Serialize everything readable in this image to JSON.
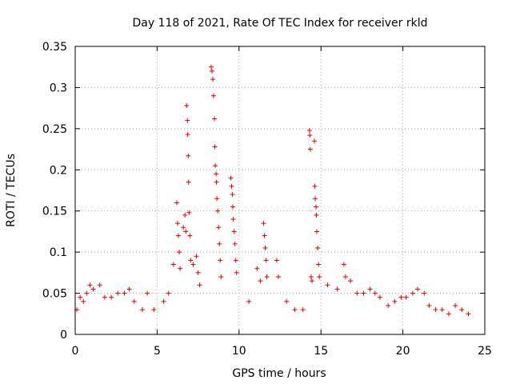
{
  "chart_data": {
    "type": "scatter",
    "title": "Day 118 of 2021, Rate Of TEC Index for receiver rkld",
    "xlabel": "GPS time / hours",
    "ylabel": "ROTI / TECUs",
    "xlim": [
      0,
      25
    ],
    "ylim": [
      0,
      0.35
    ],
    "grid": true,
    "marker": "+",
    "marker_color": "#e00000",
    "x_ticks": [
      {
        "value": 0,
        "label": "0"
      },
      {
        "value": 5,
        "label": "5"
      },
      {
        "value": 10,
        "label": "10"
      },
      {
        "value": 15,
        "label": "15"
      },
      {
        "value": 20,
        "label": "20"
      },
      {
        "value": 25,
        "label": "25"
      }
    ],
    "y_ticks": [
      {
        "value": 0,
        "label": "0"
      },
      {
        "value": 0.05,
        "label": "0.05"
      },
      {
        "value": 0.1,
        "label": "0.1"
      },
      {
        "value": 0.15,
        "label": "0.15"
      },
      {
        "value": 0.2,
        "label": "0.2"
      },
      {
        "value": 0.25,
        "label": "0.25"
      },
      {
        "value": 0.3,
        "label": "0.3"
      },
      {
        "value": 0.35,
        "label": "0.35"
      }
    ],
    "series": [
      {
        "name": "ROTI",
        "points": [
          [
            0.1,
            0.03
          ],
          [
            0.3,
            0.045
          ],
          [
            0.5,
            0.04
          ],
          [
            0.7,
            0.05
          ],
          [
            0.9,
            0.06
          ],
          [
            1.1,
            0.055
          ],
          [
            1.5,
            0.06
          ],
          [
            1.8,
            0.045
          ],
          [
            2.2,
            0.045
          ],
          [
            2.6,
            0.05
          ],
          [
            3.0,
            0.05
          ],
          [
            3.3,
            0.055
          ],
          [
            3.6,
            0.04
          ],
          [
            4.1,
            0.03
          ],
          [
            4.4,
            0.05
          ],
          [
            4.8,
            0.03
          ],
          [
            5.4,
            0.04
          ],
          [
            5.7,
            0.05
          ],
          [
            6.0,
            0.085
          ],
          [
            6.2,
            0.16
          ],
          [
            6.25,
            0.135
          ],
          [
            6.3,
            0.12
          ],
          [
            6.35,
            0.1
          ],
          [
            6.4,
            0.08
          ],
          [
            6.6,
            0.13
          ],
          [
            6.7,
            0.145
          ],
          [
            6.75,
            0.125
          ],
          [
            6.8,
            0.278
          ],
          [
            6.85,
            0.26
          ],
          [
            6.87,
            0.243
          ],
          [
            6.9,
            0.217
          ],
          [
            6.92,
            0.185
          ],
          [
            6.95,
            0.148
          ],
          [
            7.0,
            0.12
          ],
          [
            7.05,
            0.09
          ],
          [
            7.2,
            0.085
          ],
          [
            7.4,
            0.095
          ],
          [
            7.5,
            0.075
          ],
          [
            7.6,
            0.06
          ],
          [
            8.3,
            0.325
          ],
          [
            8.35,
            0.32
          ],
          [
            8.4,
            0.31
          ],
          [
            8.45,
            0.29
          ],
          [
            8.5,
            0.262
          ],
          [
            8.52,
            0.228
          ],
          [
            8.55,
            0.205
          ],
          [
            8.6,
            0.195
          ],
          [
            8.62,
            0.185
          ],
          [
            8.65,
            0.165
          ],
          [
            8.7,
            0.15
          ],
          [
            8.75,
            0.13
          ],
          [
            8.8,
            0.11
          ],
          [
            8.85,
            0.09
          ],
          [
            8.9,
            0.07
          ],
          [
            9.5,
            0.19
          ],
          [
            9.55,
            0.18
          ],
          [
            9.6,
            0.17
          ],
          [
            9.62,
            0.155
          ],
          [
            9.65,
            0.14
          ],
          [
            9.7,
            0.125
          ],
          [
            9.75,
            0.11
          ],
          [
            9.8,
            0.09
          ],
          [
            9.85,
            0.075
          ],
          [
            10.6,
            0.04
          ],
          [
            11.1,
            0.08
          ],
          [
            11.3,
            0.065
          ],
          [
            11.5,
            0.135
          ],
          [
            11.55,
            0.12
          ],
          [
            11.6,
            0.105
          ],
          [
            11.65,
            0.09
          ],
          [
            11.7,
            0.07
          ],
          [
            12.3,
            0.09
          ],
          [
            12.4,
            0.07
          ],
          [
            12.9,
            0.04
          ],
          [
            13.4,
            0.03
          ],
          [
            13.9,
            0.03
          ],
          [
            14.3,
            0.248
          ],
          [
            14.32,
            0.242
          ],
          [
            14.35,
            0.225
          ],
          [
            14.4,
            0.07
          ],
          [
            14.45,
            0.065
          ],
          [
            14.6,
            0.235
          ],
          [
            14.62,
            0.18
          ],
          [
            14.65,
            0.165
          ],
          [
            14.7,
            0.155
          ],
          [
            14.72,
            0.145
          ],
          [
            14.75,
            0.125
          ],
          [
            14.8,
            0.105
          ],
          [
            14.85,
            0.085
          ],
          [
            14.9,
            0.07
          ],
          [
            15.4,
            0.06
          ],
          [
            16.0,
            0.055
          ],
          [
            16.4,
            0.085
          ],
          [
            16.5,
            0.07
          ],
          [
            16.8,
            0.065
          ],
          [
            17.2,
            0.05
          ],
          [
            17.6,
            0.05
          ],
          [
            18.0,
            0.055
          ],
          [
            18.3,
            0.05
          ],
          [
            18.6,
            0.045
          ],
          [
            19.1,
            0.035
          ],
          [
            19.5,
            0.04
          ],
          [
            19.9,
            0.045
          ],
          [
            20.2,
            0.045
          ],
          [
            20.6,
            0.05
          ],
          [
            20.9,
            0.055
          ],
          [
            21.3,
            0.05
          ],
          [
            21.6,
            0.035
          ],
          [
            22.0,
            0.03
          ],
          [
            22.4,
            0.03
          ],
          [
            22.8,
            0.025
          ],
          [
            23.2,
            0.035
          ],
          [
            23.6,
            0.03
          ],
          [
            24.0,
            0.025
          ]
        ]
      }
    ]
  }
}
